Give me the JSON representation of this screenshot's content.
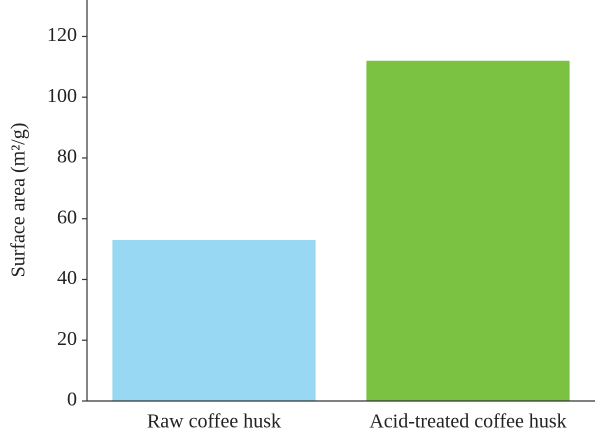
{
  "chart_data": {
    "type": "bar",
    "y_label": "Surface area (m²/g)",
    "categories": [
      "Raw coffee husk",
      "Acid-treated coffee husk"
    ],
    "values": [
      53,
      112
    ],
    "colors": [
      "#99d8f2",
      "#7cc242"
    ],
    "ylim": [
      0,
      132
    ],
    "yticks": [
      0,
      20,
      40,
      60,
      80,
      100,
      120
    ],
    "grid": false
  }
}
